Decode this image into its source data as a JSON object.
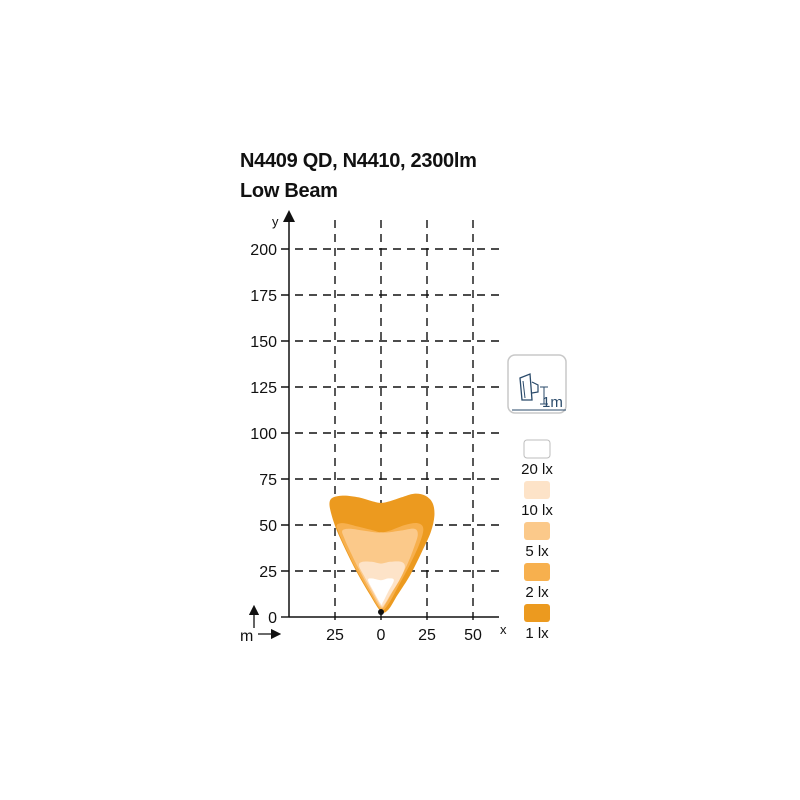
{
  "chart_data": {
    "type": "area",
    "title": "N4409 QD, N4410, 2300lm",
    "subtitle": "Low Beam",
    "xlabel": "x",
    "ylabel": "y",
    "unit_label": "m",
    "x_ticks": [
      "25",
      "0",
      "25",
      "50"
    ],
    "x_tick_values": [
      -25,
      0,
      25,
      50
    ],
    "y_ticks": [
      "0",
      "25",
      "50",
      "75",
      "100",
      "125",
      "150",
      "175",
      "200"
    ],
    "y_tick_values": [
      0,
      25,
      50,
      75,
      100,
      125,
      150,
      175,
      200
    ],
    "xlim": [
      -50,
      65
    ],
    "ylim": [
      0,
      210
    ],
    "grid": true,
    "mounting_height_label": "1m",
    "legend": [
      {
        "label": "20 lx",
        "color": "#ffffff"
      },
      {
        "label": "10 lx",
        "color": "#fde3c8"
      },
      {
        "label": "5 lx",
        "color": "#fbc98a"
      },
      {
        "label": "2 lx",
        "color": "#f7b04e"
      },
      {
        "label": "1 lx",
        "color": "#ec9a1f"
      }
    ],
    "isolux": [
      {
        "level": "1 lx",
        "color": "#ec9a1f",
        "points": [
          [
            0,
            3
          ],
          [
            -6,
            12
          ],
          [
            -13,
            24
          ],
          [
            -19,
            36
          ],
          [
            -24,
            47
          ],
          [
            -27,
            56
          ],
          [
            -28,
            62
          ],
          [
            -26,
            65
          ],
          [
            -20,
            66
          ],
          [
            -12,
            65
          ],
          [
            -5,
            63
          ],
          [
            0,
            62
          ],
          [
            5,
            63
          ],
          [
            11,
            65
          ],
          [
            18,
            67
          ],
          [
            24,
            66
          ],
          [
            28,
            62
          ],
          [
            29,
            55
          ],
          [
            27,
            46
          ],
          [
            22,
            35
          ],
          [
            16,
            23
          ],
          [
            9,
            12
          ],
          [
            4,
            4
          ],
          [
            0,
            3
          ]
        ]
      },
      {
        "level": "2 lx",
        "color": "#f7b04e",
        "points": [
          [
            0,
            4
          ],
          [
            -6,
            13
          ],
          [
            -13,
            25
          ],
          [
            -19,
            37
          ],
          [
            -23,
            46
          ],
          [
            -24,
            50
          ],
          [
            -20,
            51
          ],
          [
            -12,
            49
          ],
          [
            -4,
            47
          ],
          [
            0,
            46
          ],
          [
            5,
            47
          ],
          [
            13,
            50
          ],
          [
            20,
            51
          ],
          [
            23,
            48
          ],
          [
            21,
            40
          ],
          [
            16,
            29
          ],
          [
            9,
            16
          ],
          [
            4,
            7
          ],
          [
            0,
            4
          ]
        ]
      },
      {
        "level": "5 lx",
        "color": "#fbc98a",
        "points": [
          [
            0,
            5
          ],
          [
            -5,
            13
          ],
          [
            -11,
            24
          ],
          [
            -16,
            34
          ],
          [
            -20,
            43
          ],
          [
            -21,
            47
          ],
          [
            -17,
            48
          ],
          [
            -10,
            47
          ],
          [
            -3,
            46
          ],
          [
            0,
            46
          ],
          [
            4,
            46
          ],
          [
            11,
            47
          ],
          [
            18,
            48
          ],
          [
            20,
            45
          ],
          [
            18,
            38
          ],
          [
            14,
            28
          ],
          [
            8,
            17
          ],
          [
            3,
            8
          ],
          [
            0,
            5
          ]
        ]
      },
      {
        "level": "10 lx",
        "color": "#fde3c8",
        "points": [
          [
            0,
            6
          ],
          [
            -4,
            13
          ],
          [
            -9,
            22
          ],
          [
            -12,
            28
          ],
          [
            -10,
            30
          ],
          [
            -5,
            30
          ],
          [
            0,
            29
          ],
          [
            5,
            30
          ],
          [
            11,
            30
          ],
          [
            13,
            27
          ],
          [
            10,
            20
          ],
          [
            5,
            12
          ],
          [
            2,
            7
          ],
          [
            0,
            6
          ]
        ]
      },
      {
        "level": "20 lx",
        "color": "#ffffff",
        "points": [
          [
            0,
            7
          ],
          [
            -4,
            14
          ],
          [
            -7,
            20
          ],
          [
            -5,
            21
          ],
          [
            0,
            20
          ],
          [
            4,
            21
          ],
          [
            7,
            20
          ],
          [
            4,
            14
          ],
          [
            1,
            8
          ],
          [
            0,
            7
          ]
        ]
      }
    ]
  }
}
